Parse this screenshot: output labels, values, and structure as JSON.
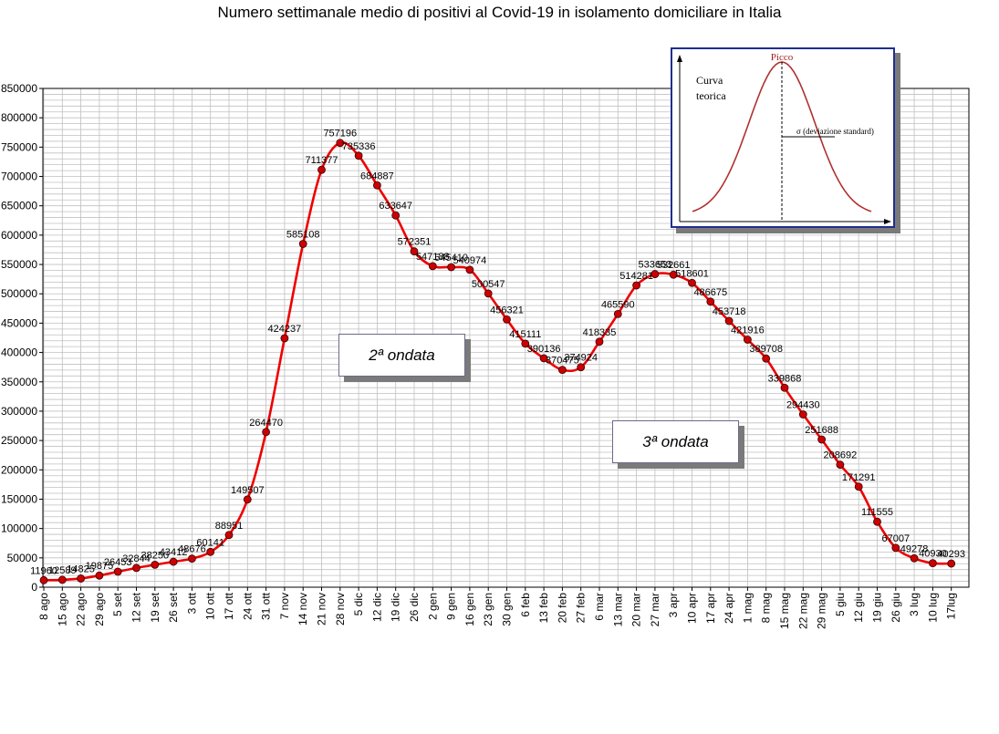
{
  "chart_data": {
    "type": "line",
    "title": "Numero settimanale medio di positivi al Covid-19  in isolamento domiciliare in Italia",
    "xlabel": "",
    "ylabel": "",
    "ylim": [
      0,
      850000
    ],
    "yticks": [
      0,
      50000,
      100000,
      150000,
      200000,
      250000,
      300000,
      350000,
      400000,
      450000,
      500000,
      550000,
      600000,
      650000,
      700000,
      750000,
      800000,
      850000
    ],
    "grid": true,
    "line_color": "#ee0000",
    "marker_color": "#cc0000",
    "categories": [
      "8 ago",
      "15 ago",
      "22 ago",
      "29 ago",
      "5 set",
      "12 set",
      "19 set",
      "26 set",
      "3 ott",
      "10 ott",
      "17 ott",
      "24 ott",
      "31 ott",
      "7 nov",
      "14 nov",
      "21 nov",
      "28 nov",
      "5 dic",
      "12 dic",
      "19 dic",
      "26 dic",
      "2 gen",
      "9 gen",
      "16 gen",
      "23 gen",
      "30 gen",
      "6 feb",
      "13 feb",
      "20 feb",
      "27 feb",
      "6 mar",
      "13 mar",
      "20 mar",
      "27 mar",
      "3 apr",
      "10 apr",
      "17 apr",
      "24 apr",
      "1 mag",
      "8 mag",
      "15 mag",
      "22 mag",
      "29 mag",
      "5 giu",
      "12 giu",
      "19 giu",
      "26 giu",
      "3 lug",
      "10 lug",
      "17lug"
    ],
    "series": [
      {
        "values": [
          11960,
          12589,
          14825,
          19875,
          26453,
          32844,
          38250,
          43412,
          48676,
          60141,
          88951,
          149507,
          264470,
          424237,
          585108,
          711377,
          757196,
          735336,
          684887,
          633647,
          572351,
          547188,
          545410,
          540974,
          500547,
          456321,
          415111,
          390136,
          370475,
          374924,
          418335,
          465590,
          514281,
          533653,
          532661,
          518601,
          486675,
          453718,
          421916,
          389708,
          339868,
          294430,
          251688,
          208692,
          171291,
          111555,
          67007,
          49278,
          40930,
          40293
        ],
        "labels": [
          "11960",
          "12589",
          "14825",
          "19875",
          "26453",
          "32844",
          "38250",
          "43412",
          "48676",
          "60141",
          "88951",
          "149507",
          "264470",
          "424237",
          "585108",
          "711377",
          "757196",
          "735336",
          "684887",
          "633647",
          "572351",
          "547188",
          "545410",
          "540974",
          "500547",
          "456321",
          "415111",
          "390136",
          "370475",
          "374924",
          "418335",
          "465590",
          "514281",
          "533653",
          "532661",
          "518601",
          "486675",
          "453718",
          "421916",
          "389708",
          "339868",
          "294430",
          "251688",
          "208692",
          "171291",
          "111555",
          "67007",
          "49278",
          "40930",
          "40293"
        ]
      }
    ],
    "annotations": [
      {
        "text": "2ª ondata"
      },
      {
        "text": "3ª ondata"
      }
    ]
  },
  "inset": {
    "label_line1": "Curva",
    "label_line2": "teorica",
    "peak_label": "Picco",
    "sigma_label": "σ  (deviazione standard)",
    "curve_color": "#b03030",
    "frame_color": "#1f2f8f"
  }
}
